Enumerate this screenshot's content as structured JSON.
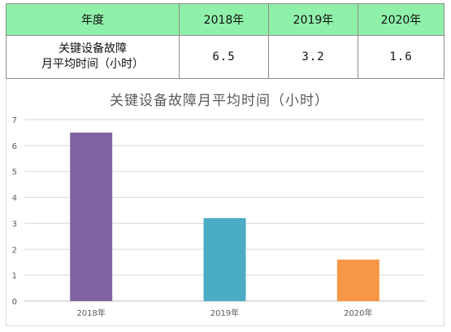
{
  "table": {
    "header": [
      "年度",
      "2018年",
      "2019年",
      "2020年"
    ],
    "row_label_line1": "关键设备故障",
    "row_label_line2": "月平均时间（小时）",
    "values": [
      "6.5",
      "3.2",
      "1.6"
    ]
  },
  "chart_data": {
    "type": "bar",
    "title": "关键设备故障月平均时间（小时）",
    "categories": [
      "2018年",
      "2019年",
      "2020年"
    ],
    "values": [
      6.5,
      3.2,
      1.6
    ],
    "colors": [
      "#8064a2",
      "#4bacc6",
      "#f79646"
    ],
    "yticks": [
      "0",
      "1",
      "2",
      "3",
      "4",
      "5",
      "6",
      "7"
    ],
    "ylim": [
      0,
      7
    ],
    "grid": true
  }
}
